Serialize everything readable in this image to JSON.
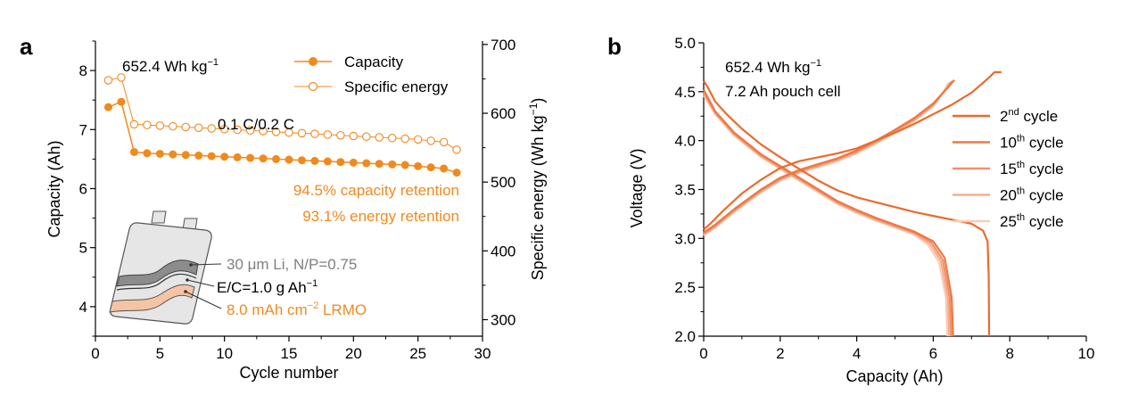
{
  "panels": {
    "a_letter": "a",
    "b_letter": "b"
  },
  "chart_data": [
    {
      "type": "scatter",
      "panel": "a",
      "xlabel": "Cycle number",
      "ylabel_left": "Capacity (Ah)",
      "ylabel_right_main": "Specific energy (Wh kg",
      "ylabel_right_sup": "−1",
      "ylabel_right_close": ")",
      "xlim": [
        0,
        30
      ],
      "ylim_left": [
        3.5,
        8.5
      ],
      "ylim_right": [
        276,
        705
      ],
      "xticks": [
        0,
        5,
        10,
        15,
        20,
        25,
        30
      ],
      "yticks_left": [
        4,
        5,
        6,
        7,
        8
      ],
      "yticks_right": [
        300,
        400,
        500,
        600,
        700
      ],
      "series": [
        {
          "name": "Capacity",
          "axis": "left",
          "color": "#F08A1E",
          "marker": "filled-circle",
          "x": [
            1,
            2,
            3,
            4,
            5,
            6,
            7,
            8,
            9,
            10,
            11,
            12,
            13,
            14,
            15,
            16,
            17,
            18,
            19,
            20,
            21,
            22,
            23,
            24,
            25,
            26,
            27,
            28
          ],
          "values": [
            7.38,
            7.47,
            6.62,
            6.6,
            6.59,
            6.58,
            6.57,
            6.56,
            6.55,
            6.54,
            6.53,
            6.52,
            6.51,
            6.5,
            6.49,
            6.48,
            6.47,
            6.46,
            6.45,
            6.44,
            6.43,
            6.42,
            6.41,
            6.4,
            6.38,
            6.36,
            6.34,
            6.27
          ]
        },
        {
          "name": "Specific energy",
          "axis": "right",
          "color": "#F08A1E",
          "marker": "open-circle",
          "x": [
            1,
            2,
            3,
            4,
            5,
            6,
            7,
            8,
            9,
            10,
            11,
            12,
            13,
            14,
            15,
            16,
            17,
            18,
            19,
            20,
            21,
            22,
            23,
            24,
            25,
            26,
            27,
            28
          ],
          "values": [
            648,
            652,
            584,
            583,
            582,
            581,
            580,
            579,
            578,
            577,
            576,
            575,
            574,
            573,
            572,
            571,
            570,
            569,
            568,
            567,
            566,
            565,
            564,
            563,
            562,
            560,
            558,
            547
          ]
        }
      ],
      "annotations": {
        "energy_main": "652.4 Wh kg",
        "energy_sup": "−1",
        "rate": "0.1 C/0.2 C",
        "capacity_retention": "94.5% capacity retention",
        "energy_retention": "93.1% energy retention",
        "li_label": "30 μm Li, N/P=0.75",
        "ec_main": "E/C=1.0 g Ah",
        "ec_sup": "−1",
        "lrmo_main": "8.0 mAh cm",
        "lrmo_sup": "−2",
        "lrmo_tail": " LRMO"
      },
      "colors": {
        "orange": "#F08A1E",
        "gray_text": "#7F7F7F",
        "black": "#000000",
        "cell_fill": "#E6E6E6",
        "li_layer": "#8C8C8C",
        "cathode_layer": "#F5C4A4"
      }
    },
    {
      "type": "line",
      "panel": "b",
      "xlabel": "Capacity (Ah)",
      "ylabel": "Voltage (V)",
      "xlim": [
        0,
        10
      ],
      "ylim": [
        2.0,
        5.0
      ],
      "xticks": [
        0,
        2,
        4,
        6,
        8,
        10
      ],
      "yticks": [
        2.0,
        2.5,
        3.0,
        3.5,
        4.0,
        4.5,
        5.0
      ],
      "annotations": {
        "energy_main": "652.4 Wh kg",
        "energy_sup": "−1",
        "cell": "7.2 Ah pouch cell"
      },
      "series": [
        {
          "name_num": "2",
          "name_sup": "nd",
          "name_tail": " cycle",
          "color": "#EC6A2C",
          "charge": [
            [
              0.0,
              3.09
            ],
            [
              0.2,
              3.16
            ],
            [
              0.5,
              3.28
            ],
            [
              1.0,
              3.46
            ],
            [
              1.5,
              3.6
            ],
            [
              2.0,
              3.72
            ],
            [
              2.5,
              3.79
            ],
            [
              3.0,
              3.83
            ],
            [
              3.5,
              3.87
            ],
            [
              4.0,
              3.92
            ],
            [
              4.5,
              4.0
            ],
            [
              5.0,
              4.08
            ],
            [
              5.5,
              4.17
            ],
            [
              6.0,
              4.27
            ],
            [
              6.5,
              4.37
            ],
            [
              7.0,
              4.49
            ],
            [
              7.3,
              4.59
            ],
            [
              7.5,
              4.66
            ],
            [
              7.6,
              4.7
            ],
            [
              7.78,
              4.7
            ]
          ],
          "discharge": [
            [
              0.0,
              4.61
            ],
            [
              0.1,
              4.55
            ],
            [
              0.3,
              4.4
            ],
            [
              0.6,
              4.27
            ],
            [
              1.0,
              4.12
            ],
            [
              1.5,
              3.96
            ],
            [
              2.0,
              3.83
            ],
            [
              2.5,
              3.71
            ],
            [
              3.0,
              3.59
            ],
            [
              3.5,
              3.49
            ],
            [
              4.0,
              3.42
            ],
            [
              4.5,
              3.37
            ],
            [
              5.0,
              3.32
            ],
            [
              5.5,
              3.27
            ],
            [
              6.0,
              3.23
            ],
            [
              6.5,
              3.19
            ],
            [
              7.0,
              3.15
            ],
            [
              7.3,
              3.08
            ],
            [
              7.42,
              2.97
            ],
            [
              7.45,
              2.6
            ],
            [
              7.46,
              2.0
            ]
          ]
        },
        {
          "name_num": "10",
          "name_sup": "th",
          "name_tail": " cycle",
          "color": "#EE7845",
          "charge": [
            [
              0.0,
              3.06
            ],
            [
              0.3,
              3.14
            ],
            [
              0.8,
              3.3
            ],
            [
              1.5,
              3.5
            ],
            [
              2.0,
              3.62
            ],
            [
              2.5,
              3.7
            ],
            [
              3.0,
              3.76
            ],
            [
              3.5,
              3.82
            ],
            [
              4.0,
              3.9
            ],
            [
              4.5,
              4.0
            ],
            [
              5.0,
              4.11
            ],
            [
              5.5,
              4.23
            ],
            [
              6.0,
              4.38
            ],
            [
              6.4,
              4.55
            ],
            [
              6.55,
              4.62
            ]
          ],
          "discharge": [
            [
              0.0,
              4.52
            ],
            [
              0.3,
              4.3
            ],
            [
              0.8,
              4.08
            ],
            [
              1.5,
              3.86
            ],
            [
              2.0,
              3.74
            ],
            [
              2.5,
              3.62
            ],
            [
              3.0,
              3.5
            ],
            [
              3.5,
              3.38
            ],
            [
              4.0,
              3.29
            ],
            [
              4.5,
              3.21
            ],
            [
              5.0,
              3.14
            ],
            [
              5.5,
              3.07
            ],
            [
              6.0,
              2.97
            ],
            [
              6.3,
              2.8
            ],
            [
              6.48,
              2.4
            ],
            [
              6.52,
              2.0
            ]
          ]
        },
        {
          "name_num": "15",
          "name_sup": "th",
          "name_tail": " cycle",
          "color": "#F29268",
          "charge": [
            [
              0.0,
              3.05
            ],
            [
              0.3,
              3.13
            ],
            [
              0.8,
              3.29
            ],
            [
              1.5,
              3.49
            ],
            [
              2.0,
              3.61
            ],
            [
              2.5,
              3.69
            ],
            [
              3.0,
              3.75
            ],
            [
              3.5,
              3.81
            ],
            [
              4.0,
              3.89
            ],
            [
              4.5,
              3.99
            ],
            [
              5.0,
              4.1
            ],
            [
              5.5,
              4.22
            ],
            [
              6.0,
              4.37
            ],
            [
              6.35,
              4.53
            ],
            [
              6.5,
              4.61
            ]
          ],
          "discharge": [
            [
              0.0,
              4.5
            ],
            [
              0.3,
              4.29
            ],
            [
              0.8,
              4.07
            ],
            [
              1.5,
              3.85
            ],
            [
              2.0,
              3.73
            ],
            [
              2.5,
              3.61
            ],
            [
              3.0,
              3.49
            ],
            [
              3.5,
              3.37
            ],
            [
              4.0,
              3.28
            ],
            [
              4.5,
              3.2
            ],
            [
              5.0,
              3.13
            ],
            [
              5.5,
              3.06
            ],
            [
              5.95,
              2.96
            ],
            [
              6.25,
              2.78
            ],
            [
              6.43,
              2.4
            ],
            [
              6.47,
              2.0
            ]
          ]
        },
        {
          "name_num": "20",
          "name_sup": "th",
          "name_tail": " cycle",
          "color": "#F5AE8E",
          "charge": [
            [
              0.0,
              3.04
            ],
            [
              0.3,
              3.12
            ],
            [
              0.8,
              3.28
            ],
            [
              1.5,
              3.48
            ],
            [
              2.0,
              3.6
            ],
            [
              2.5,
              3.68
            ],
            [
              3.0,
              3.74
            ],
            [
              3.5,
              3.8
            ],
            [
              4.0,
              3.88
            ],
            [
              4.5,
              3.98
            ],
            [
              5.0,
              4.09
            ],
            [
              5.5,
              4.21
            ],
            [
              6.0,
              4.36
            ],
            [
              6.3,
              4.51
            ],
            [
              6.45,
              4.6
            ]
          ],
          "discharge": [
            [
              0.0,
              4.48
            ],
            [
              0.3,
              4.28
            ],
            [
              0.8,
              4.06
            ],
            [
              1.5,
              3.84
            ],
            [
              2.0,
              3.72
            ],
            [
              2.5,
              3.6
            ],
            [
              3.0,
              3.48
            ],
            [
              3.5,
              3.36
            ],
            [
              4.0,
              3.27
            ],
            [
              4.5,
              3.19
            ],
            [
              5.0,
              3.12
            ],
            [
              5.5,
              3.05
            ],
            [
              5.9,
              2.95
            ],
            [
              6.2,
              2.77
            ],
            [
              6.38,
              2.4
            ],
            [
              6.42,
              2.0
            ]
          ]
        },
        {
          "name_num": "25",
          "name_sup": "th",
          "name_tail": " cycle",
          "color": "#F9CDB7",
          "charge": [
            [
              0.0,
              3.03
            ],
            [
              0.3,
              3.11
            ],
            [
              0.8,
              3.27
            ],
            [
              1.5,
              3.47
            ],
            [
              2.0,
              3.59
            ],
            [
              2.5,
              3.67
            ],
            [
              3.0,
              3.73
            ],
            [
              3.5,
              3.79
            ],
            [
              4.0,
              3.87
            ],
            [
              4.5,
              3.97
            ],
            [
              5.0,
              4.08
            ],
            [
              5.5,
              4.2
            ],
            [
              6.0,
              4.35
            ],
            [
              6.25,
              4.49
            ],
            [
              6.4,
              4.59
            ]
          ],
          "discharge": [
            [
              0.0,
              4.46
            ],
            [
              0.3,
              4.27
            ],
            [
              0.8,
              4.05
            ],
            [
              1.5,
              3.83
            ],
            [
              2.0,
              3.71
            ],
            [
              2.5,
              3.59
            ],
            [
              3.0,
              3.47
            ],
            [
              3.5,
              3.35
            ],
            [
              4.0,
              3.26
            ],
            [
              4.5,
              3.18
            ],
            [
              5.0,
              3.11
            ],
            [
              5.5,
              3.04
            ],
            [
              5.85,
              2.94
            ],
            [
              6.15,
              2.76
            ],
            [
              6.33,
              2.4
            ],
            [
              6.37,
              2.0
            ]
          ]
        }
      ]
    }
  ]
}
